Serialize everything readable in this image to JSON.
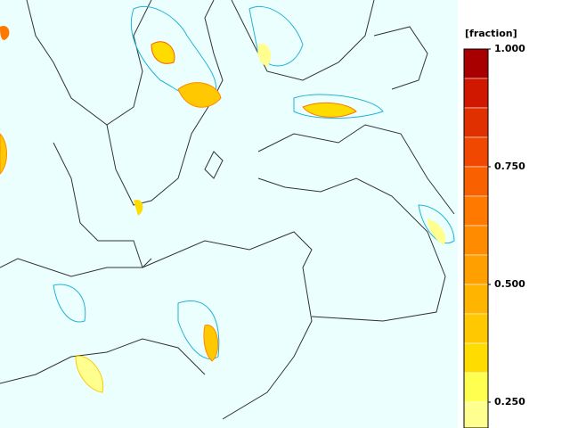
{
  "legend": {
    "title": "[fraction]",
    "tick_labels": [
      "1.000",
      "0.750",
      "0.500",
      "0.250"
    ],
    "colors": [
      "#a80000",
      "#d01800",
      "#e03000",
      "#f04800",
      "#f86000",
      "#ff7800",
      "#ff8c00",
      "#ffa000",
      "#ffb400",
      "#ffc800",
      "#ffdc00",
      "#ffff50",
      "#ffff90"
    ]
  }
}
